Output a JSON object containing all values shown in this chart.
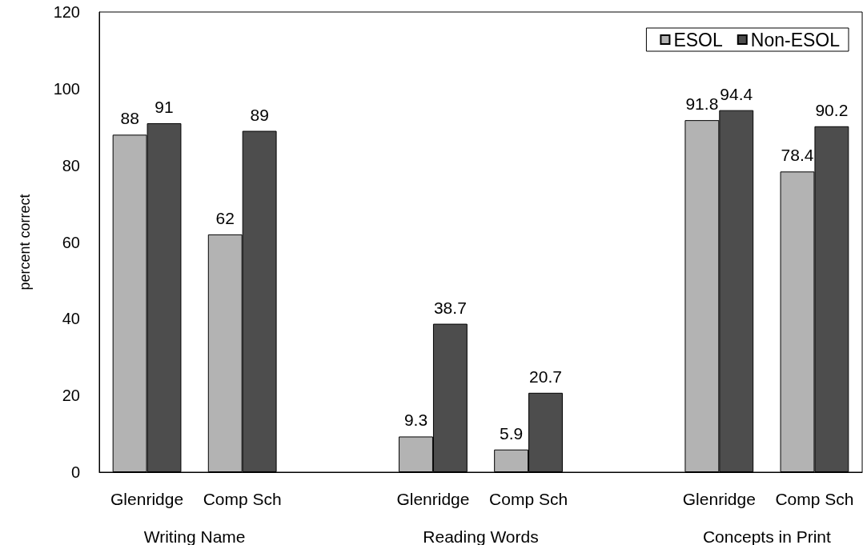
{
  "chart_data": {
    "type": "bar",
    "ylabel": "percent correct",
    "categories": [
      "Glenridge",
      "Comp Sch",
      null,
      "Glenridge",
      "Comp Sch",
      null,
      "Glenridge",
      "Comp Sch"
    ],
    "series": [
      {
        "name": "ESOL",
        "color": "#b3b3b3",
        "values": [
          88,
          62,
          null,
          9.3,
          5.9,
          null,
          91.8,
          78.4
        ]
      },
      {
        "name": "Non-ESOL",
        "color": "#4d4d4d",
        "values": [
          91,
          89,
          null,
          38.7,
          20.7,
          null,
          94.4,
          90.2
        ]
      }
    ],
    "ylim": [
      0,
      120
    ],
    "yticks": [
      0,
      20,
      40,
      60,
      80,
      100,
      120
    ],
    "grid": false,
    "legend": "top right",
    "data_labels": true,
    "annotations": [
      "Writing Name",
      "Reading Words",
      "Concepts in Print"
    ]
  }
}
